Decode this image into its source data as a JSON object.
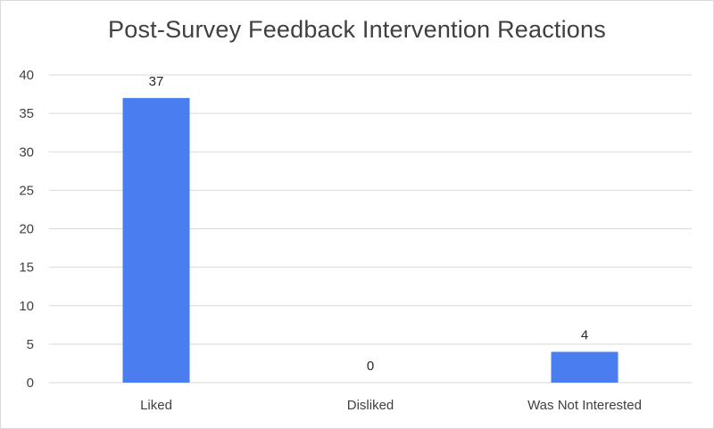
{
  "chart_data": {
    "type": "bar",
    "title": "Post-Survey Feedback Intervention Reactions",
    "categories": [
      "Liked",
      "Disliked",
      "Was Not Interested"
    ],
    "values": [
      37,
      0,
      4
    ],
    "data_labels": [
      "37",
      "0",
      "4"
    ],
    "ylim": [
      0,
      40
    ],
    "yticks": [
      0,
      5,
      10,
      15,
      20,
      25,
      30,
      35,
      40
    ],
    "grid": true,
    "legend": "none",
    "bar_color": "#4a7ef0",
    "grid_color": "#d9d9d9"
  }
}
